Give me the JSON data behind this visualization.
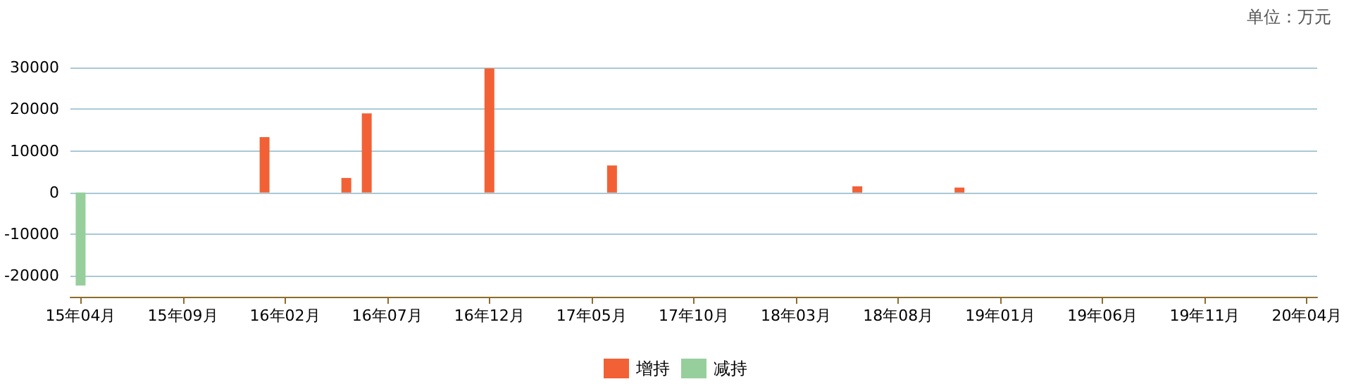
{
  "chart_data": {
    "type": "bar",
    "annotations": [
      "单位：万元"
    ],
    "categories": [
      "15年04月",
      null,
      null,
      null,
      null,
      "15年09月",
      null,
      null,
      null,
      null,
      "16年02月",
      null,
      null,
      null,
      null,
      "16年07月",
      null,
      null,
      null,
      null,
      "16年12月",
      null,
      null,
      null,
      null,
      "17年05月",
      null,
      null,
      null,
      null,
      "17年10月",
      null,
      null,
      null,
      null,
      "18年03月",
      null,
      null,
      null,
      null,
      "18年08月",
      null,
      null,
      null,
      null,
      "19年01月",
      null,
      null,
      null,
      null,
      "19年06月",
      null,
      null,
      null,
      null,
      "19年11月",
      null,
      null,
      null,
      null,
      "20年04月"
    ],
    "series": [
      {
        "name": "增持",
        "color": "#f26135",
        "values": [
          null,
          null,
          null,
          null,
          null,
          null,
          null,
          null,
          null,
          13300,
          null,
          null,
          null,
          3500,
          19000,
          null,
          null,
          null,
          null,
          null,
          29800,
          null,
          null,
          null,
          null,
          null,
          6500,
          null,
          null,
          null,
          null,
          null,
          null,
          null,
          null,
          null,
          null,
          null,
          1500,
          null,
          null,
          null,
          null,
          1200,
          null,
          null,
          null,
          null,
          null,
          null,
          null,
          null,
          null,
          null,
          null,
          null,
          null,
          null,
          null,
          null,
          null
        ]
      },
      {
        "name": "减持",
        "color": "#96cf9c",
        "values": [
          -22300,
          null,
          null,
          null,
          null,
          null,
          null,
          null,
          null,
          null,
          null,
          null,
          null,
          null,
          null,
          null,
          null,
          null,
          null,
          null,
          null,
          null,
          null,
          null,
          null,
          null,
          null,
          null,
          null,
          null,
          null,
          null,
          null,
          null,
          null,
          null,
          null,
          null,
          null,
          null,
          null,
          null,
          null,
          null,
          null,
          null,
          null,
          null,
          null,
          null,
          null,
          null,
          null,
          null,
          null,
          null,
          null,
          null,
          null,
          null,
          null
        ]
      }
    ],
    "ylim": [
      -25000,
      30000
    ],
    "yticks": [
      -20000,
      -10000,
      0,
      10000,
      20000,
      30000
    ],
    "grid": "y",
    "legend": "bottom"
  }
}
